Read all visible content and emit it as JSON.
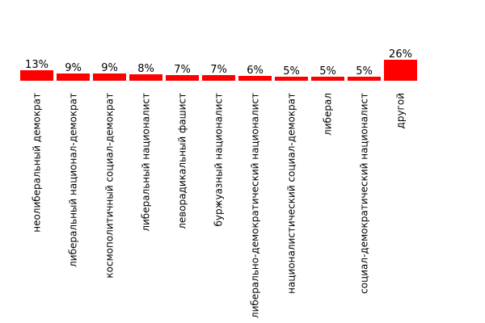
{
  "colors": {
    "bar": "#ff0000",
    "text": "#000000",
    "background": "#ffffff"
  },
  "chart_data": {
    "type": "bar",
    "title": "",
    "xlabel": "",
    "ylabel": "",
    "ylim": [
      0,
      26
    ],
    "grid": false,
    "legend": "none",
    "categories": [
      "неолиберальный демократ",
      "либеральный национал-демократ",
      "космополитичный социал-демократ",
      "либеральный националист",
      "леворадикальный фашист",
      "буржуазный националист",
      "либерально-демократический националист",
      "националистический социал-демократ",
      "либерал",
      "социал-демократический националист",
      "другой"
    ],
    "values": [
      13,
      9,
      9,
      8,
      7,
      7,
      6,
      5,
      5,
      5,
      26
    ],
    "value_labels": [
      "13%",
      "9%",
      "9%",
      "8%",
      "7%",
      "7%",
      "6%",
      "5%",
      "5%",
      "5%",
      "26%"
    ]
  }
}
